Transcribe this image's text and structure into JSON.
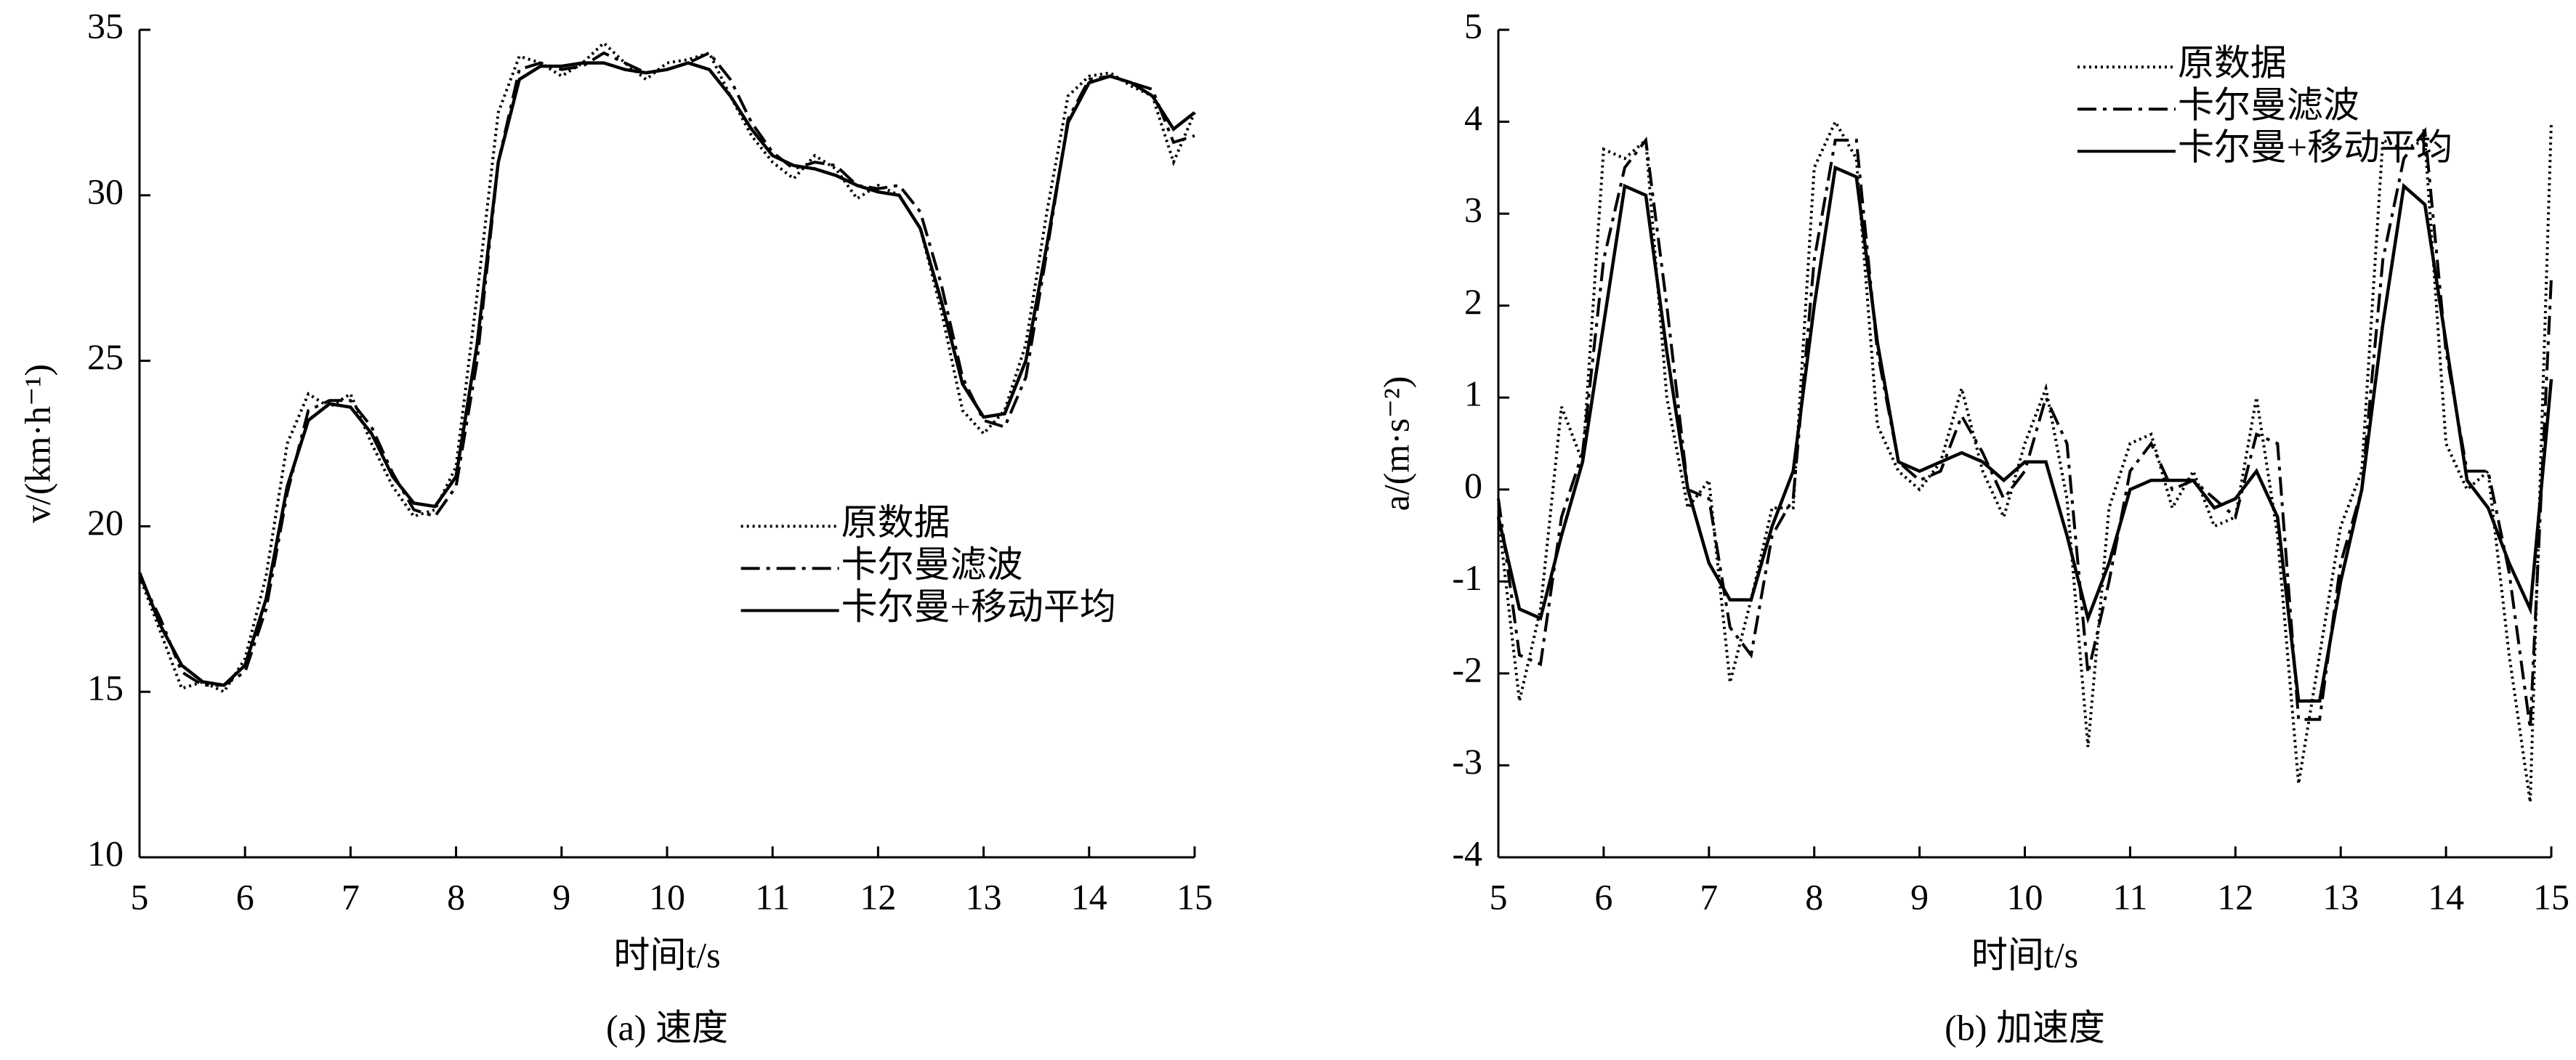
{
  "chart_data": [
    {
      "type": "line",
      "caption": "(a) 速度",
      "x_label": "时间t/s",
      "y_label": "v/(km·h⁻¹)",
      "x": [
        5,
        5.2,
        5.4,
        5.6,
        5.8,
        6,
        6.2,
        6.4,
        6.6,
        6.8,
        7,
        7.2,
        7.4,
        7.6,
        7.8,
        8,
        8.2,
        8.4,
        8.6,
        8.8,
        9,
        9.2,
        9.4,
        9.6,
        9.8,
        10,
        10.2,
        10.4,
        10.6,
        10.8,
        11,
        11.2,
        11.4,
        11.6,
        11.8,
        12,
        12.2,
        12.4,
        12.6,
        12.8,
        13,
        13.2,
        13.4,
        13.6,
        13.8,
        14,
        14.2,
        14.4,
        14.6,
        14.8,
        15
      ],
      "xlim": [
        5,
        15
      ],
      "xticks": [
        5,
        6,
        7,
        8,
        9,
        10,
        11,
        12,
        13,
        14,
        15
      ],
      "ylim": [
        10,
        35
      ],
      "yticks": [
        10,
        15,
        20,
        25,
        30,
        35
      ],
      "legend_position": "center right",
      "series": [
        {
          "name": "原数据",
          "color": "#000000",
          "style": "dotted",
          "values": [
            18.5,
            16.8,
            15.1,
            15.3,
            15.0,
            16.0,
            18.5,
            22.5,
            24.0,
            23.6,
            24.0,
            22.5,
            21.2,
            20.3,
            20.5,
            21.8,
            27.0,
            32.5,
            34.2,
            34.0,
            33.6,
            34.0,
            34.6,
            34.0,
            33.5,
            34.0,
            34.1,
            34.3,
            33.0,
            31.8,
            31.0,
            30.5,
            31.2,
            30.8,
            29.9,
            30.3,
            30.0,
            29.0,
            26.5,
            23.5,
            22.8,
            23.5,
            25.5,
            29.5,
            33.0,
            33.6,
            33.7,
            33.3,
            33.0,
            31.0,
            32.5
          ]
        },
        {
          "name": "卡尔曼滤波",
          "color": "#000000",
          "style": "dashdot",
          "values": [
            18.5,
            17.2,
            15.6,
            15.2,
            15.2,
            15.6,
            17.5,
            21.0,
            23.5,
            23.8,
            23.8,
            23.0,
            21.6,
            20.5,
            20.3,
            21.2,
            25.0,
            31.0,
            33.8,
            34.0,
            33.8,
            33.9,
            34.3,
            34.0,
            33.7,
            33.8,
            34.0,
            34.3,
            33.5,
            32.2,
            31.3,
            30.8,
            31.0,
            30.9,
            30.3,
            30.2,
            30.3,
            29.5,
            27.3,
            24.5,
            23.2,
            23.0,
            24.5,
            28.3,
            32.3,
            33.5,
            33.6,
            33.4,
            33.2,
            31.6,
            31.8
          ]
        },
        {
          "name": "卡尔曼+移动平均",
          "color": "#000000",
          "style": "solid",
          "values": [
            18.6,
            17.0,
            15.8,
            15.3,
            15.2,
            15.8,
            17.8,
            21.2,
            23.2,
            23.7,
            23.6,
            22.8,
            21.5,
            20.7,
            20.6,
            21.5,
            25.5,
            31.0,
            33.5,
            33.9,
            33.9,
            34.0,
            34.0,
            33.8,
            33.7,
            33.8,
            34.0,
            33.8,
            33.0,
            32.0,
            31.2,
            30.9,
            30.8,
            30.6,
            30.3,
            30.1,
            30.0,
            29.0,
            26.8,
            24.3,
            23.3,
            23.4,
            25.0,
            28.5,
            32.2,
            33.4,
            33.6,
            33.4,
            33.0,
            32.0,
            32.5
          ]
        }
      ]
    },
    {
      "type": "line",
      "caption": "(b) 加速度",
      "x_label": "时间t/s",
      "y_label": "a/(m·s⁻²)",
      "x": [
        5,
        5.2,
        5.4,
        5.6,
        5.8,
        6,
        6.2,
        6.4,
        6.6,
        6.8,
        7,
        7.2,
        7.4,
        7.6,
        7.8,
        8,
        8.2,
        8.4,
        8.6,
        8.8,
        9,
        9.2,
        9.4,
        9.6,
        9.8,
        10,
        10.2,
        10.4,
        10.6,
        10.8,
        11,
        11.2,
        11.4,
        11.6,
        11.8,
        12,
        12.2,
        12.4,
        12.6,
        12.8,
        13,
        13.2,
        13.4,
        13.6,
        13.8,
        14,
        14.2,
        14.4,
        14.6,
        14.8,
        15
      ],
      "xlim": [
        5,
        15
      ],
      "xticks": [
        5,
        6,
        7,
        8,
        9,
        10,
        11,
        12,
        13,
        14,
        15
      ],
      "ylim": [
        -4,
        5
      ],
      "yticks": [
        -4,
        -3,
        -2,
        -1,
        0,
        1,
        2,
        3,
        4,
        5
      ],
      "legend_position": "upper center",
      "series": [
        {
          "name": "原数据",
          "color": "#000000",
          "style": "dotted",
          "values": [
            -0.3,
            -2.3,
            -1.3,
            0.9,
            0.3,
            3.7,
            3.6,
            3.8,
            1.0,
            -0.2,
            0.1,
            -2.1,
            -1.2,
            -0.2,
            -0.2,
            3.5,
            4.0,
            3.6,
            0.7,
            0.2,
            0.0,
            0.3,
            1.1,
            0.2,
            -0.3,
            0.5,
            1.1,
            -0.1,
            -2.8,
            -0.2,
            0.5,
            0.6,
            -0.2,
            0.2,
            -0.4,
            -0.3,
            1.0,
            -0.5,
            -3.2,
            -1.8,
            -0.4,
            0.2,
            3.8,
            3.7,
            3.8,
            0.5,
            0.0,
            0.2,
            -1.8,
            -3.4,
            4.0
          ]
        },
        {
          "name": "卡尔曼滤波",
          "color": "#000000",
          "style": "dashdot",
          "values": [
            -0.1,
            -1.8,
            -1.9,
            -0.3,
            0.4,
            2.5,
            3.5,
            3.8,
            2.0,
            0.0,
            -0.1,
            -1.5,
            -1.8,
            -0.5,
            -0.1,
            2.5,
            3.8,
            3.8,
            1.5,
            0.3,
            0.1,
            0.2,
            0.8,
            0.4,
            -0.1,
            0.2,
            1.0,
            0.5,
            -2.0,
            -1.0,
            0.2,
            0.5,
            0.0,
            0.1,
            -0.1,
            -0.3,
            0.6,
            0.5,
            -2.5,
            -2.5,
            -0.8,
            0.0,
            2.5,
            3.6,
            3.9,
            1.5,
            0.2,
            0.2,
            -0.9,
            -2.6,
            2.3
          ]
        },
        {
          "name": "卡尔曼+移动平均",
          "color": "#000000",
          "style": "solid",
          "values": [
            -0.3,
            -1.3,
            -1.4,
            -0.5,
            0.3,
            1.8,
            3.3,
            3.2,
            1.5,
            0.0,
            -0.8,
            -1.2,
            -1.2,
            -0.4,
            0.2,
            2.0,
            3.5,
            3.4,
            1.6,
            0.3,
            0.2,
            0.3,
            0.4,
            0.3,
            0.1,
            0.3,
            0.3,
            -0.5,
            -1.4,
            -0.8,
            0.0,
            0.1,
            0.1,
            0.1,
            -0.2,
            -0.1,
            0.2,
            -0.3,
            -2.3,
            -2.3,
            -1.0,
            0.0,
            1.8,
            3.3,
            3.1,
            1.6,
            0.1,
            -0.2,
            -0.8,
            -1.3,
            1.2
          ]
        }
      ]
    }
  ]
}
